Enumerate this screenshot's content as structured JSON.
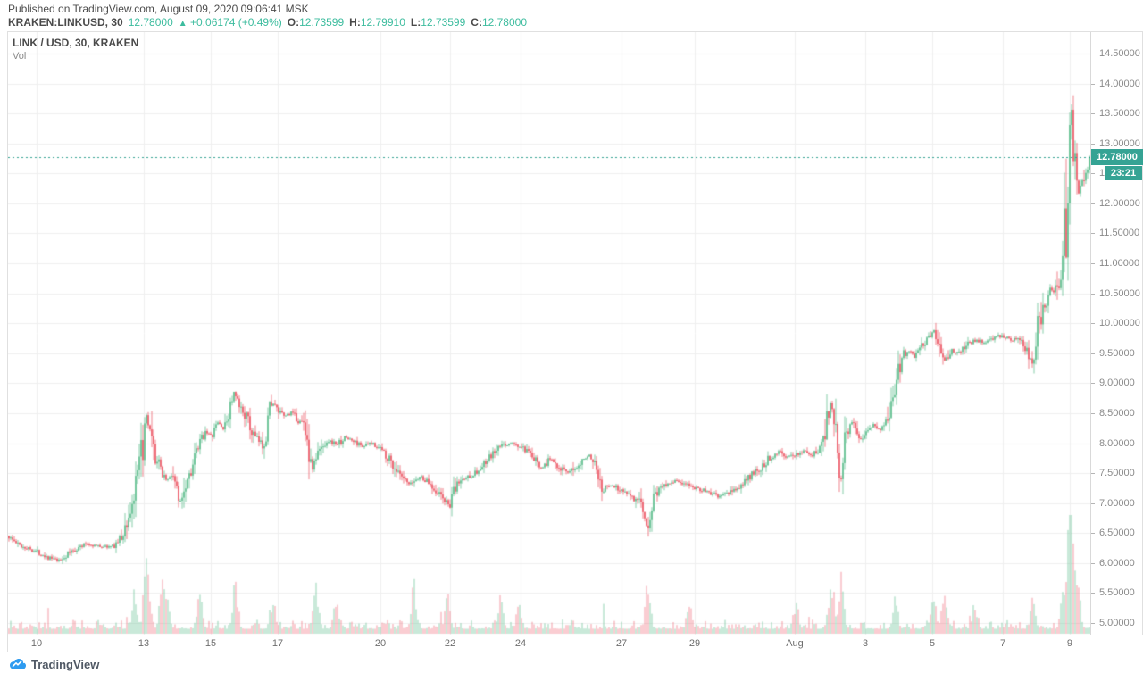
{
  "header": {
    "published_line": "Published on TradingView.com, August 09, 2020 09:06:41 MSK",
    "symbol": "KRAKEN:LINKUSD, 30",
    "last_price": "12.78000",
    "direction_arrow": "▲",
    "change": "+0.06174 (+0.49%)",
    "ohlc": [
      {
        "label": "O:",
        "value": "12.73599"
      },
      {
        "label": "H:",
        "value": "12.79910"
      },
      {
        "label": "L:",
        "value": "12.73599"
      },
      {
        "label": "C:",
        "value": "12.78000"
      }
    ]
  },
  "legend": {
    "title": "LINK / USD, 30, KRAKEN",
    "indicator": "Vol"
  },
  "price_axis": {
    "min": 5.0,
    "max": 14.5,
    "step": 0.5,
    "decimals": 5,
    "last_price_label": "12.78000",
    "countdown": "23:21"
  },
  "time_axis": {
    "ticks": [
      {
        "label": "10",
        "t": 0.0264
      },
      {
        "label": "13",
        "t": 0.1254
      },
      {
        "label": "15",
        "t": 0.1873
      },
      {
        "label": "17",
        "t": 0.2492
      },
      {
        "label": "20",
        "t": 0.3441
      },
      {
        "label": "22",
        "t": 0.4084
      },
      {
        "label": "24",
        "t": 0.4736
      },
      {
        "label": "27",
        "t": 0.5668
      },
      {
        "label": "29",
        "t": 0.6345
      },
      {
        "label": "Aug",
        "t": 0.7269
      },
      {
        "label": "3",
        "t": 0.7921
      },
      {
        "label": "5",
        "t": 0.854
      },
      {
        "label": "7",
        "t": 0.9192
      },
      {
        "label": "9",
        "t": 0.981
      }
    ]
  },
  "footer": {
    "logo_text": "TradingView"
  },
  "colors": {
    "up": "#53b987",
    "down": "#eb4d5c",
    "vol_up": "rgba(83,185,135,0.45)",
    "vol_down": "rgba(235,77,92,0.40)",
    "badge": "#35a394",
    "price_line": "#35a394",
    "grid": "#f0f0f0",
    "teal_text": "#3cbc9e",
    "logo_blue": "#2e9bf0"
  },
  "chart_data": {
    "type": "candlestick",
    "title": "LINK / USD, 30, KRAKEN",
    "interval_minutes": 30,
    "last_close": 12.78,
    "ylim": [
      5.0,
      14.5
    ],
    "candles": 606,
    "seed": 1337,
    "price_path": [
      [
        0.0,
        6.45
      ],
      [
        0.01,
        6.3
      ],
      [
        0.026,
        6.2
      ],
      [
        0.039,
        6.08
      ],
      [
        0.047,
        6.03
      ],
      [
        0.059,
        6.2
      ],
      [
        0.072,
        6.32
      ],
      [
        0.084,
        6.28
      ],
      [
        0.0965,
        6.27
      ],
      [
        0.105,
        6.42
      ],
      [
        0.113,
        6.85
      ],
      [
        0.119,
        7.3
      ],
      [
        0.124,
        7.9
      ],
      [
        0.128,
        8.42
      ],
      [
        0.134,
        7.85
      ],
      [
        0.14,
        7.6
      ],
      [
        0.147,
        7.38
      ],
      [
        0.153,
        7.5
      ],
      [
        0.158,
        6.98
      ],
      [
        0.163,
        7.3
      ],
      [
        0.17,
        7.62
      ],
      [
        0.177,
        7.95
      ],
      [
        0.182,
        8.22
      ],
      [
        0.188,
        8.1
      ],
      [
        0.194,
        8.35
      ],
      [
        0.2,
        8.22
      ],
      [
        0.205,
        8.6
      ],
      [
        0.209,
        8.85
      ],
      [
        0.213,
        8.6
      ],
      [
        0.219,
        8.5
      ],
      [
        0.224,
        8.22
      ],
      [
        0.23,
        8.05
      ],
      [
        0.236,
        7.98
      ],
      [
        0.243,
        8.72
      ],
      [
        0.248,
        8.55
      ],
      [
        0.255,
        8.45
      ],
      [
        0.262,
        8.5
      ],
      [
        0.268,
        8.38
      ],
      [
        0.275,
        8.3
      ],
      [
        0.28,
        7.55
      ],
      [
        0.287,
        7.85
      ],
      [
        0.295,
        8.05
      ],
      [
        0.304,
        7.98
      ],
      [
        0.312,
        8.1
      ],
      [
        0.32,
        8.02
      ],
      [
        0.328,
        7.95
      ],
      [
        0.337,
        8.0
      ],
      [
        0.345,
        7.9
      ],
      [
        0.353,
        7.72
      ],
      [
        0.363,
        7.42
      ],
      [
        0.371,
        7.3
      ],
      [
        0.381,
        7.45
      ],
      [
        0.391,
        7.3
      ],
      [
        0.401,
        7.1
      ],
      [
        0.408,
        6.95
      ],
      [
        0.416,
        7.35
      ],
      [
        0.426,
        7.45
      ],
      [
        0.436,
        7.55
      ],
      [
        0.445,
        7.75
      ],
      [
        0.455,
        7.95
      ],
      [
        0.465,
        8.0
      ],
      [
        0.475,
        7.92
      ],
      [
        0.485,
        7.75
      ],
      [
        0.493,
        7.6
      ],
      [
        0.502,
        7.75
      ],
      [
        0.51,
        7.6
      ],
      [
        0.518,
        7.48
      ],
      [
        0.526,
        7.65
      ],
      [
        0.535,
        7.8
      ],
      [
        0.543,
        7.72
      ],
      [
        0.549,
        7.25
      ],
      [
        0.558,
        7.3
      ],
      [
        0.566,
        7.22
      ],
      [
        0.576,
        7.15
      ],
      [
        0.584,
        6.95
      ],
      [
        0.591,
        6.58
      ],
      [
        0.597,
        7.15
      ],
      [
        0.607,
        7.32
      ],
      [
        0.617,
        7.38
      ],
      [
        0.627,
        7.3
      ],
      [
        0.637,
        7.25
      ],
      [
        0.647,
        7.18
      ],
      [
        0.657,
        7.1
      ],
      [
        0.667,
        7.18
      ],
      [
        0.677,
        7.28
      ],
      [
        0.686,
        7.45
      ],
      [
        0.696,
        7.6
      ],
      [
        0.706,
        7.8
      ],
      [
        0.713,
        7.88
      ],
      [
        0.72,
        7.75
      ],
      [
        0.728,
        7.82
      ],
      [
        0.736,
        7.88
      ],
      [
        0.744,
        7.78
      ],
      [
        0.754,
        8.1
      ],
      [
        0.76,
        8.72
      ],
      [
        0.765,
        8.3
      ],
      [
        0.769,
        7.3
      ],
      [
        0.775,
        8.25
      ],
      [
        0.781,
        8.4
      ],
      [
        0.787,
        8.05
      ],
      [
        0.794,
        8.25
      ],
      [
        0.8,
        8.32
      ],
      [
        0.807,
        8.2
      ],
      [
        0.813,
        8.45
      ],
      [
        0.819,
        8.9
      ],
      [
        0.825,
        9.4
      ],
      [
        0.831,
        9.55
      ],
      [
        0.837,
        9.45
      ],
      [
        0.843,
        9.62
      ],
      [
        0.85,
        9.75
      ],
      [
        0.855,
        9.88
      ],
      [
        0.86,
        9.68
      ],
      [
        0.865,
        9.32
      ],
      [
        0.871,
        9.55
      ],
      [
        0.878,
        9.5
      ],
      [
        0.886,
        9.65
      ],
      [
        0.894,
        9.72
      ],
      [
        0.903,
        9.68
      ],
      [
        0.911,
        9.75
      ],
      [
        0.919,
        9.8
      ],
      [
        0.926,
        9.7
      ],
      [
        0.932,
        9.75
      ],
      [
        0.939,
        9.6
      ],
      [
        0.944,
        9.45
      ],
      [
        0.947,
        9.3
      ],
      [
        0.951,
        9.85
      ],
      [
        0.955,
        10.15
      ],
      [
        0.96,
        10.45
      ],
      [
        0.964,
        10.6
      ],
      [
        0.968,
        10.55
      ],
      [
        0.971,
        10.75
      ],
      [
        0.974,
        11.2
      ],
      [
        0.976,
        11.55
      ],
      [
        0.978,
        11.45
      ],
      [
        0.98,
        12.9
      ],
      [
        0.982,
        13.75
      ],
      [
        0.9835,
        12.9
      ],
      [
        0.985,
        12.55
      ],
      [
        0.987,
        12.85
      ],
      [
        0.988,
        12.3
      ],
      [
        0.99,
        12.05
      ],
      [
        0.992,
        12.5
      ],
      [
        0.993,
        12.35
      ],
      [
        0.995,
        12.65
      ],
      [
        0.997,
        12.55
      ],
      [
        1.0,
        12.78
      ]
    ],
    "volume_spikes": [
      [
        0.117,
        45
      ],
      [
        0.128,
        125
      ],
      [
        0.142,
        55
      ],
      [
        0.147,
        40
      ],
      [
        0.177,
        48
      ],
      [
        0.21,
        58
      ],
      [
        0.245,
        40
      ],
      [
        0.284,
        62
      ],
      [
        0.303,
        35
      ],
      [
        0.375,
        55
      ],
      [
        0.406,
        42
      ],
      [
        0.455,
        40
      ],
      [
        0.472,
        35
      ],
      [
        0.591,
        58
      ],
      [
        0.63,
        30
      ],
      [
        0.728,
        30
      ],
      [
        0.761,
        55
      ],
      [
        0.77,
        60
      ],
      [
        0.82,
        38
      ],
      [
        0.855,
        40
      ],
      [
        0.865,
        42
      ],
      [
        0.893,
        30
      ],
      [
        0.947,
        35
      ],
      [
        0.975,
        55
      ],
      [
        0.981,
        130
      ],
      [
        0.984,
        72
      ],
      [
        0.989,
        45
      ]
    ]
  }
}
